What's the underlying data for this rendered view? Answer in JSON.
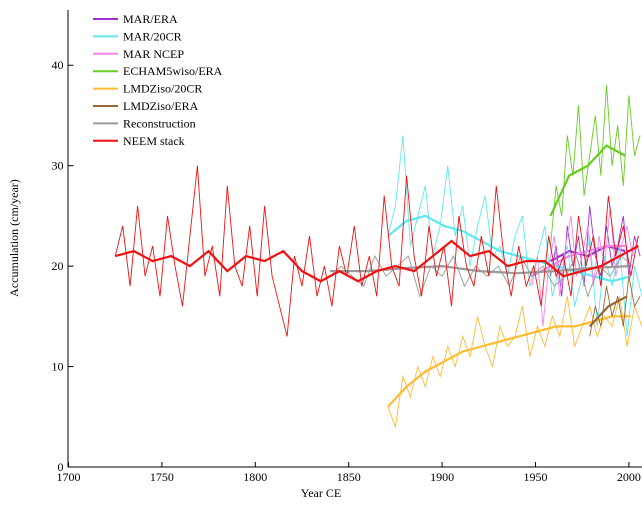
{
  "chart_data": {
    "type": "line",
    "x_label": "Year CE",
    "y_label": "Accumulation (cm/year)",
    "xlim": [
      1700,
      2007
    ],
    "ylim": [
      0,
      45.5
    ],
    "xticks": [
      1700,
      1750,
      1800,
      1850,
      1900,
      1950,
      2000
    ],
    "yticks": [
      0,
      10,
      20,
      30,
      40
    ],
    "legend": "upper left",
    "series": [
      {
        "name": "MAR/ERA",
        "color": "#9933cc",
        "x": [
          1958,
          1961,
          1964,
          1967,
          1970,
          1973,
          1976,
          1979,
          1982,
          1985,
          1988,
          1991,
          1994,
          1997,
          2000,
          2003,
          2006
        ],
        "values": [
          19,
          22,
          17,
          24,
          20,
          23,
          18,
          26,
          21,
          19,
          24,
          20,
          22,
          25,
          19,
          23,
          21
        ],
        "smooth": {
          "x": [
            1958,
            1968,
            1978,
            1988,
            1998
          ],
          "values": [
            20.5,
            21.5,
            21,
            22,
            21.5
          ]
        }
      },
      {
        "name": "MAR/20CR",
        "color": "#5ee8ee",
        "x": [
          1871,
          1875,
          1879,
          1883,
          1887,
          1891,
          1895,
          1899,
          1903,
          1907,
          1911,
          1915,
          1919,
          1923,
          1927,
          1931,
          1935,
          1939,
          1943,
          1947,
          1951,
          1955,
          1959,
          1963,
          1967,
          1971,
          1975,
          1979,
          1983,
          1987,
          1991,
          1995,
          1999,
          2003,
          2007
        ],
        "values": [
          23,
          26,
          33,
          22,
          25,
          28,
          21,
          24,
          30,
          23,
          26,
          20,
          24,
          27,
          21,
          22,
          19,
          23,
          25,
          18,
          21,
          24,
          17,
          20,
          22,
          16,
          19,
          23,
          14,
          21,
          18,
          22,
          13,
          20,
          17
        ],
        "smooth": {
          "x": [
            1871,
            1881,
            1891,
            1901,
            1911,
            1921,
            1931,
            1941,
            1951,
            1961,
            1971,
            1981,
            1991,
            2001
          ],
          "values": [
            23,
            24.5,
            25,
            24,
            23.5,
            22.5,
            21.5,
            21,
            20.5,
            20,
            19.5,
            19,
            18.5,
            19
          ]
        }
      },
      {
        "name": "MAR NCEP",
        "color": "#ee88ee",
        "x": [
          1948,
          1951,
          1954,
          1957,
          1960,
          1963,
          1966,
          1969,
          1972,
          1975,
          1978,
          1981,
          1984,
          1987,
          1990,
          1993,
          1996,
          1999,
          2002,
          2005
        ],
        "values": [
          18,
          21,
          14,
          20,
          23,
          17,
          22,
          25,
          19,
          21,
          24,
          18,
          23,
          20,
          26,
          19,
          22,
          24,
          21,
          23
        ],
        "smooth": {
          "x": [
            1948,
            1958,
            1968,
            1978,
            1988,
            1998
          ],
          "values": [
            19,
            20,
            21,
            21.5,
            22,
            22
          ]
        }
      },
      {
        "name": "ECHAM5wiso/ERA",
        "color": "#66cc22",
        "x": [
          1958,
          1961,
          1964,
          1967,
          1970,
          1973,
          1976,
          1979,
          1982,
          1985,
          1988,
          1991,
          1994,
          1997,
          2000,
          2003,
          2006
        ],
        "values": [
          22,
          28,
          25,
          33,
          29,
          36,
          27,
          31,
          35,
          29,
          38,
          30,
          34,
          28,
          37,
          31,
          33
        ],
        "smooth": {
          "x": [
            1958,
            1968,
            1978,
            1988,
            1998
          ],
          "values": [
            25,
            29,
            30,
            32,
            31
          ]
        }
      },
      {
        "name": "LMDZiso/20CR",
        "color": "#ffbb33",
        "x": [
          1871,
          1875,
          1879,
          1883,
          1887,
          1891,
          1895,
          1899,
          1903,
          1907,
          1911,
          1915,
          1919,
          1923,
          1927,
          1931,
          1935,
          1939,
          1943,
          1947,
          1951,
          1955,
          1959,
          1963,
          1967,
          1971,
          1975,
          1979,
          1983,
          1987,
          1991,
          1995,
          1999,
          2003,
          2007
        ],
        "values": [
          6,
          4,
          9,
          7,
          10,
          8,
          11,
          9,
          12,
          10,
          13,
          11,
          15,
          12,
          10,
          14,
          12,
          13,
          16,
          11,
          14,
          12,
          15,
          13,
          17,
          12,
          14,
          16,
          13,
          15,
          14,
          17,
          12,
          16,
          14
        ],
        "smooth": {
          "x": [
            1871,
            1881,
            1891,
            1901,
            1911,
            1921,
            1931,
            1941,
            1951,
            1961,
            1971,
            1981,
            1991,
            2001
          ],
          "values": [
            6,
            8,
            9.5,
            10.5,
            11.5,
            12,
            12.5,
            13,
            13.5,
            14,
            14,
            14.5,
            15,
            15
          ]
        }
      },
      {
        "name": "LMDZiso/ERA",
        "color": "#996633",
        "x": [
          1979,
          1982,
          1985,
          1988,
          1991,
          1994,
          1997,
          2000,
          2003,
          2006
        ],
        "values": [
          13,
          16,
          14,
          18,
          15,
          17,
          14,
          19,
          16,
          17
        ],
        "smooth": {
          "x": [
            1979,
            1989,
            1999
          ],
          "values": [
            14,
            16,
            17
          ]
        }
      },
      {
        "name": "Reconstruction",
        "color": "#999999",
        "x": [
          1840,
          1846,
          1852,
          1858,
          1864,
          1870,
          1876,
          1882,
          1888,
          1894,
          1900,
          1906,
          1912,
          1918,
          1924,
          1930,
          1936,
          1942,
          1948,
          1954,
          1960,
          1966,
          1972,
          1978,
          1984,
          1990,
          1996,
          2002
        ],
        "values": [
          19,
          20,
          19,
          18,
          21,
          19,
          20,
          21,
          17,
          20,
          19,
          21,
          18,
          20,
          19,
          20,
          18,
          21,
          19,
          20,
          18,
          19,
          21,
          17,
          20,
          19,
          21,
          20
        ],
        "smooth": {
          "x": [
            1840,
            1860,
            1880,
            1900,
            1920,
            1940,
            1960,
            1980,
            2000
          ],
          "values": [
            19.5,
            19.5,
            19.8,
            20,
            19.5,
            19.3,
            19.5,
            19.8,
            20
          ]
        }
      },
      {
        "name": "NEEM stack",
        "color": "#ee1111",
        "x": [
          1725,
          1729,
          1733,
          1737,
          1741,
          1745,
          1749,
          1753,
          1757,
          1761,
          1765,
          1769,
          1773,
          1777,
          1781,
          1785,
          1789,
          1793,
          1797,
          1801,
          1805,
          1809,
          1813,
          1817,
          1821,
          1825,
          1829,
          1833,
          1837,
          1841,
          1845,
          1849,
          1853,
          1857,
          1861,
          1865,
          1869,
          1873,
          1877,
          1881,
          1885,
          1889,
          1893,
          1897,
          1901,
          1905,
          1909,
          1913,
          1917,
          1921,
          1925,
          1929,
          1933,
          1937,
          1941,
          1945,
          1949,
          1953,
          1957,
          1961,
          1965,
          1969,
          1973,
          1977,
          1981,
          1985,
          1989,
          1993,
          1997,
          2001,
          2005
        ],
        "values": [
          21,
          24,
          18,
          26,
          19,
          22,
          17,
          25,
          20,
          16,
          23,
          30,
          19,
          22,
          17,
          28,
          20,
          18,
          24,
          17,
          26,
          19,
          16,
          13,
          21,
          18,
          23,
          17,
          20,
          16,
          22,
          19,
          24,
          18,
          21,
          17,
          27,
          20,
          18,
          29,
          21,
          17,
          24,
          19,
          22,
          16,
          25,
          20,
          18,
          23,
          19,
          28,
          21,
          17,
          22,
          18,
          20,
          16,
          23,
          19,
          21,
          17,
          25,
          20,
          23,
          18,
          27,
          21,
          24,
          19,
          23
        ],
        "smooth": {
          "x": [
            1725,
            1735,
            1745,
            1755,
            1765,
            1775,
            1785,
            1795,
            1805,
            1815,
            1825,
            1835,
            1845,
            1855,
            1865,
            1875,
            1885,
            1895,
            1905,
            1915,
            1925,
            1935,
            1945,
            1955,
            1965,
            1975,
            1985,
            1995,
            2005
          ],
          "values": [
            21,
            21.5,
            20.5,
            21,
            20,
            21.5,
            19.5,
            21,
            20.5,
            21.5,
            19.5,
            18.5,
            19.5,
            18.5,
            19.5,
            20,
            19.5,
            21,
            22.5,
            21,
            21.5,
            20,
            20.5,
            20.5,
            19,
            19.5,
            20,
            21,
            22
          ]
        }
      }
    ]
  }
}
